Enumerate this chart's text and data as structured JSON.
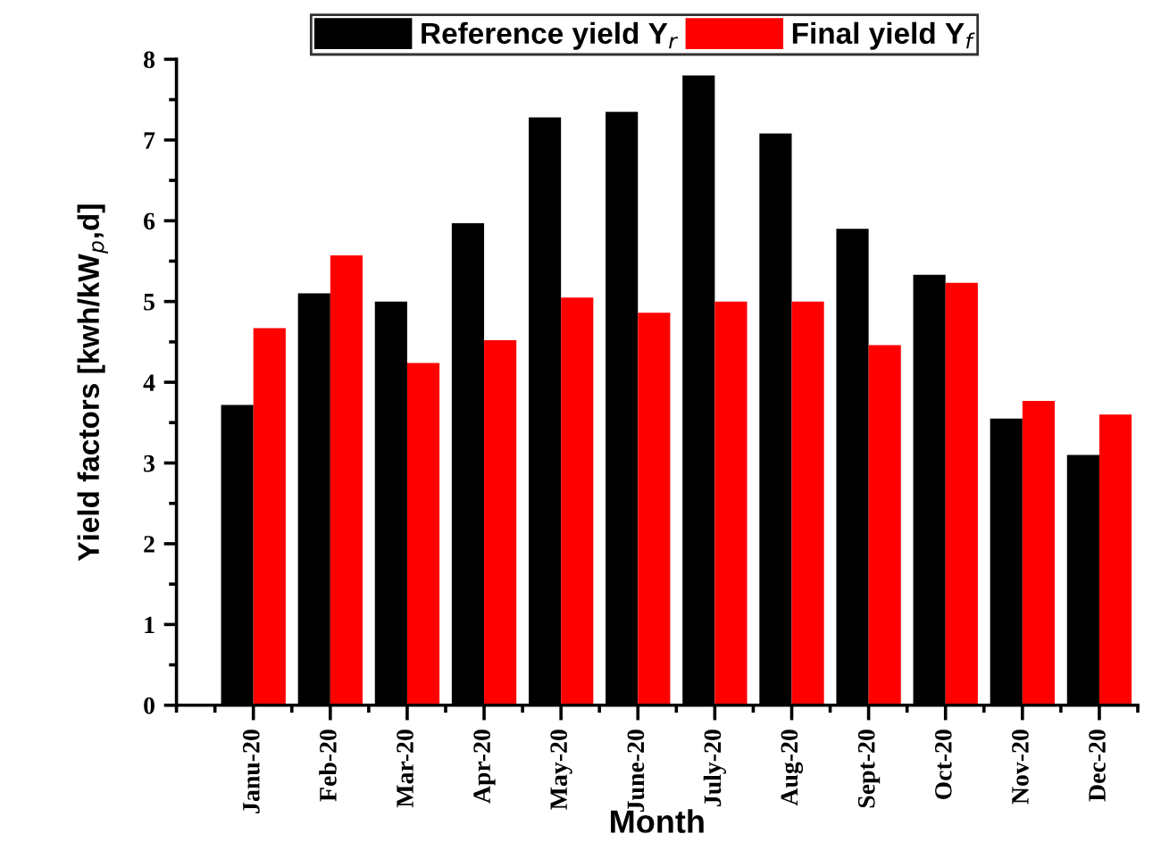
{
  "chart_data": {
    "type": "bar",
    "xlabel": "Month",
    "ylabel": "Yield factors [kwh/kW$_{p}$,d]",
    "categories": [
      "Janu-20",
      "Feb-20",
      "Mar-20",
      "Apr-20",
      "May-20",
      "June-20",
      "July-20",
      "Aug-20",
      "Sept-20",
      "Oct-20",
      "Nov-20",
      "Dec-20"
    ],
    "series": [
      {
        "name": "Reference yield Y$_{r}$",
        "color": "#000000",
        "values": [
          3.72,
          5.1,
          5.0,
          5.97,
          7.28,
          7.35,
          7.8,
          7.08,
          5.9,
          5.33,
          3.55,
          3.1
        ]
      },
      {
        "name": "Final yield Y$_{f}$",
        "color": "#ff0000",
        "values": [
          4.67,
          5.57,
          4.24,
          4.52,
          5.05,
          4.86,
          5.0,
          5.0,
          4.46,
          5.23,
          3.77,
          3.6
        ]
      }
    ],
    "ylim": [
      0,
      8
    ],
    "yticks": [
      0,
      1,
      2,
      3,
      4,
      5,
      6,
      7,
      8
    ],
    "grid": false,
    "legend": "top"
  }
}
